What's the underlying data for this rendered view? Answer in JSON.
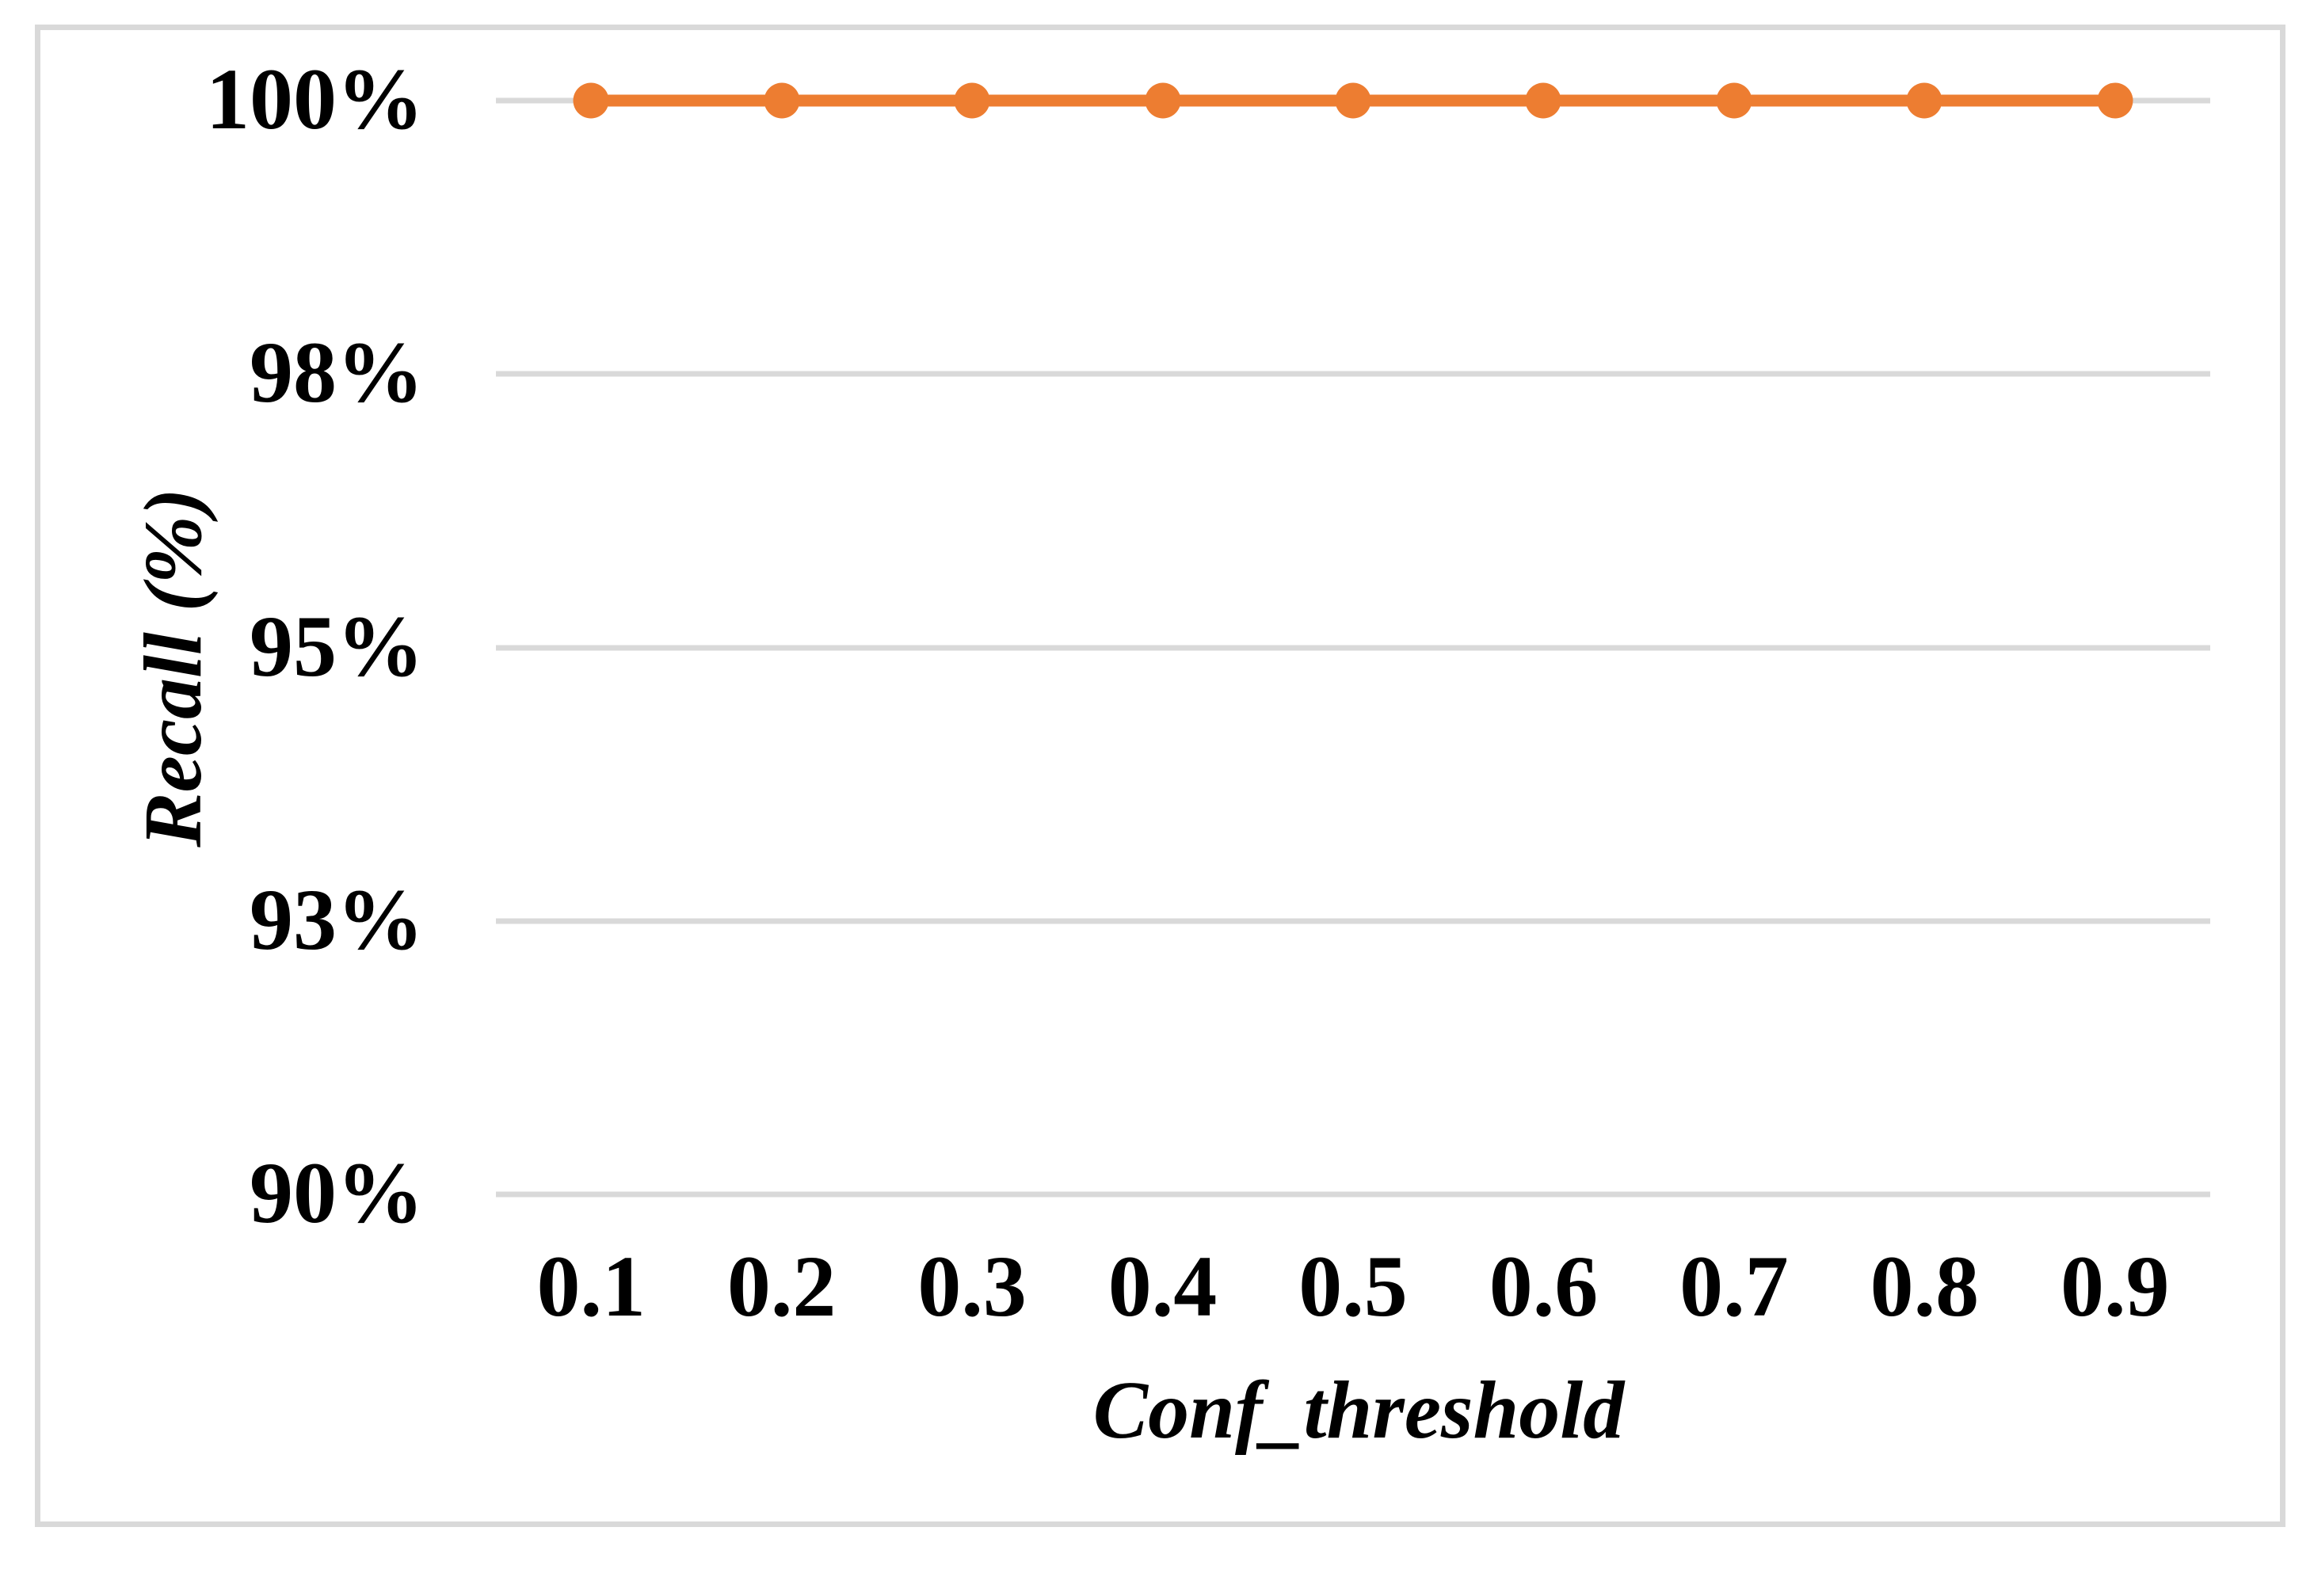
{
  "chart_data": {
    "type": "line",
    "title": "",
    "xlabel": "Conf_threshold",
    "ylabel": "Recall (%)",
    "categories": [
      "0.1",
      "0.2",
      "0.3",
      "0.4",
      "0.5",
      "0.6",
      "0.7",
      "0.8",
      "0.9"
    ],
    "x_values": [
      0.1,
      0.2,
      0.3,
      0.4,
      0.5,
      0.6,
      0.7,
      0.8,
      0.9
    ],
    "series": [
      {
        "name": "Recall",
        "values_pct": [
          100,
          100,
          100,
          100,
          100,
          100,
          100,
          100,
          100
        ],
        "color": "#ed7d31",
        "marker": "circle"
      }
    ],
    "y_tick_labels": [
      "100%",
      "98%",
      "95%",
      "93%",
      "90%"
    ],
    "y_tick_values": [
      1.0,
      0.975,
      0.95,
      0.925,
      0.9
    ],
    "ylim": [
      0.9,
      1.0
    ],
    "y_major_unit": 0.025,
    "grid": true,
    "legend": false,
    "colors": {
      "line": "#ed7d31",
      "gridline": "#d9d9d9",
      "frame_border": "#d9d9d9",
      "text": "#000000",
      "background": "#ffffff"
    }
  }
}
